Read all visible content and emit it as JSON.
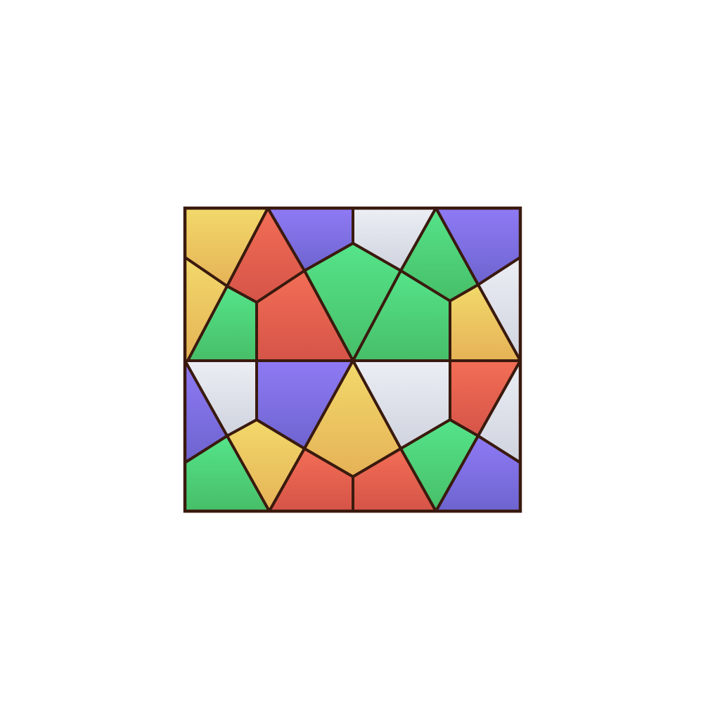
{
  "puzzle": {
    "colors": {
      "yellow": [
        "#f2d96b",
        "#e5b256"
      ],
      "red": [
        "#f36e56",
        "#d55448"
      ],
      "purple": [
        "#8f7af5",
        "#6d64cf"
      ],
      "white": [
        "#eceef4",
        "#cfd3de"
      ],
      "green": [
        "#55e48a",
        "#47be68"
      ]
    },
    "outline_color": "#3a1a0e",
    "tiles": [
      {
        "name": "tile-yellow-1",
        "color": "yellow"
      },
      {
        "name": "tile-red-1",
        "color": "red"
      },
      {
        "name": "tile-purple-1",
        "color": "purple"
      },
      {
        "name": "tile-white-1",
        "color": "white"
      },
      {
        "name": "tile-green-1",
        "color": "green"
      },
      {
        "name": "tile-purple-2",
        "color": "purple"
      },
      {
        "name": "tile-green-2",
        "color": "green"
      },
      {
        "name": "tile-white-2",
        "color": "white"
      },
      {
        "name": "tile-yellow-2",
        "color": "yellow"
      },
      {
        "name": "tile-green-3",
        "color": "green"
      },
      {
        "name": "tile-red-2",
        "color": "red"
      },
      {
        "name": "tile-green-4",
        "color": "green"
      },
      {
        "name": "tile-yellow-3",
        "color": "yellow"
      },
      {
        "name": "tile-white-3",
        "color": "white"
      },
      {
        "name": "tile-purple-3",
        "color": "purple"
      },
      {
        "name": "tile-white-4",
        "color": "white"
      },
      {
        "name": "tile-red-3",
        "color": "red"
      },
      {
        "name": "tile-purple-4",
        "color": "purple"
      },
      {
        "name": "tile-white-5",
        "color": "white"
      },
      {
        "name": "tile-yellow-4",
        "color": "yellow"
      },
      {
        "name": "tile-yellow-5",
        "color": "yellow"
      },
      {
        "name": "tile-red-4",
        "color": "red"
      },
      {
        "name": "tile-green-5",
        "color": "green"
      },
      {
        "name": "tile-red-5",
        "color": "red"
      },
      {
        "name": "tile-green-6",
        "color": "green"
      },
      {
        "name": "tile-purple-5",
        "color": "purple"
      },
      {
        "name": "tile-yellow-6",
        "color": "yellow"
      },
      {
        "name": "tile-green-7",
        "color": "green"
      },
      {
        "name": "tile-red-6",
        "color": "red"
      }
    ]
  }
}
